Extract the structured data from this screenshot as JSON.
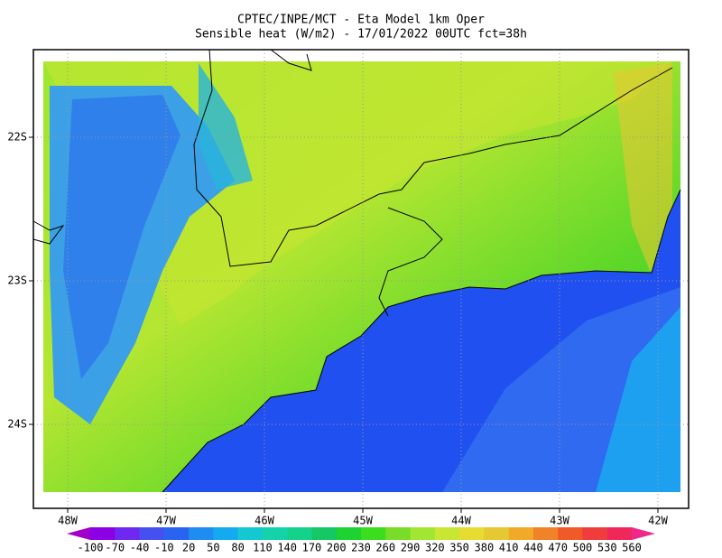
{
  "title": "CPTEC/INPE/MCT -  Eta Model 1km Oper",
  "subtitle": "Sensible heat (W/m2) - 17/01/2022 00UTC fct=38h",
  "longitude_labels": [
    "48W",
    "47W",
    "46W",
    "45W",
    "44W",
    "43W",
    "42W"
  ],
  "latitude_labels": [
    "22S",
    "23S",
    "24S"
  ],
  "colorbar": {
    "labels": [
      -100,
      -70,
      -40,
      -10,
      20,
      50,
      80,
      110,
      140,
      170,
      200,
      230,
      260,
      290,
      320,
      350,
      380,
      410,
      440,
      470,
      500,
      530,
      560
    ],
    "colors": [
      "#a000c8",
      "#8c00e6",
      "#6e28f0",
      "#4650f0",
      "#2864f0",
      "#1e8cf0",
      "#14aaf0",
      "#14c8d2",
      "#14d2aa",
      "#14d28c",
      "#14c864",
      "#1ed232",
      "#3cdc1e",
      "#78dc28",
      "#a0e632",
      "#c8e632",
      "#e6dc32",
      "#e6c832",
      "#f0aa28",
      "#f08228",
      "#f05a28",
      "#f03c3c",
      "#f0285a",
      "#f0288c"
    ]
  }
}
